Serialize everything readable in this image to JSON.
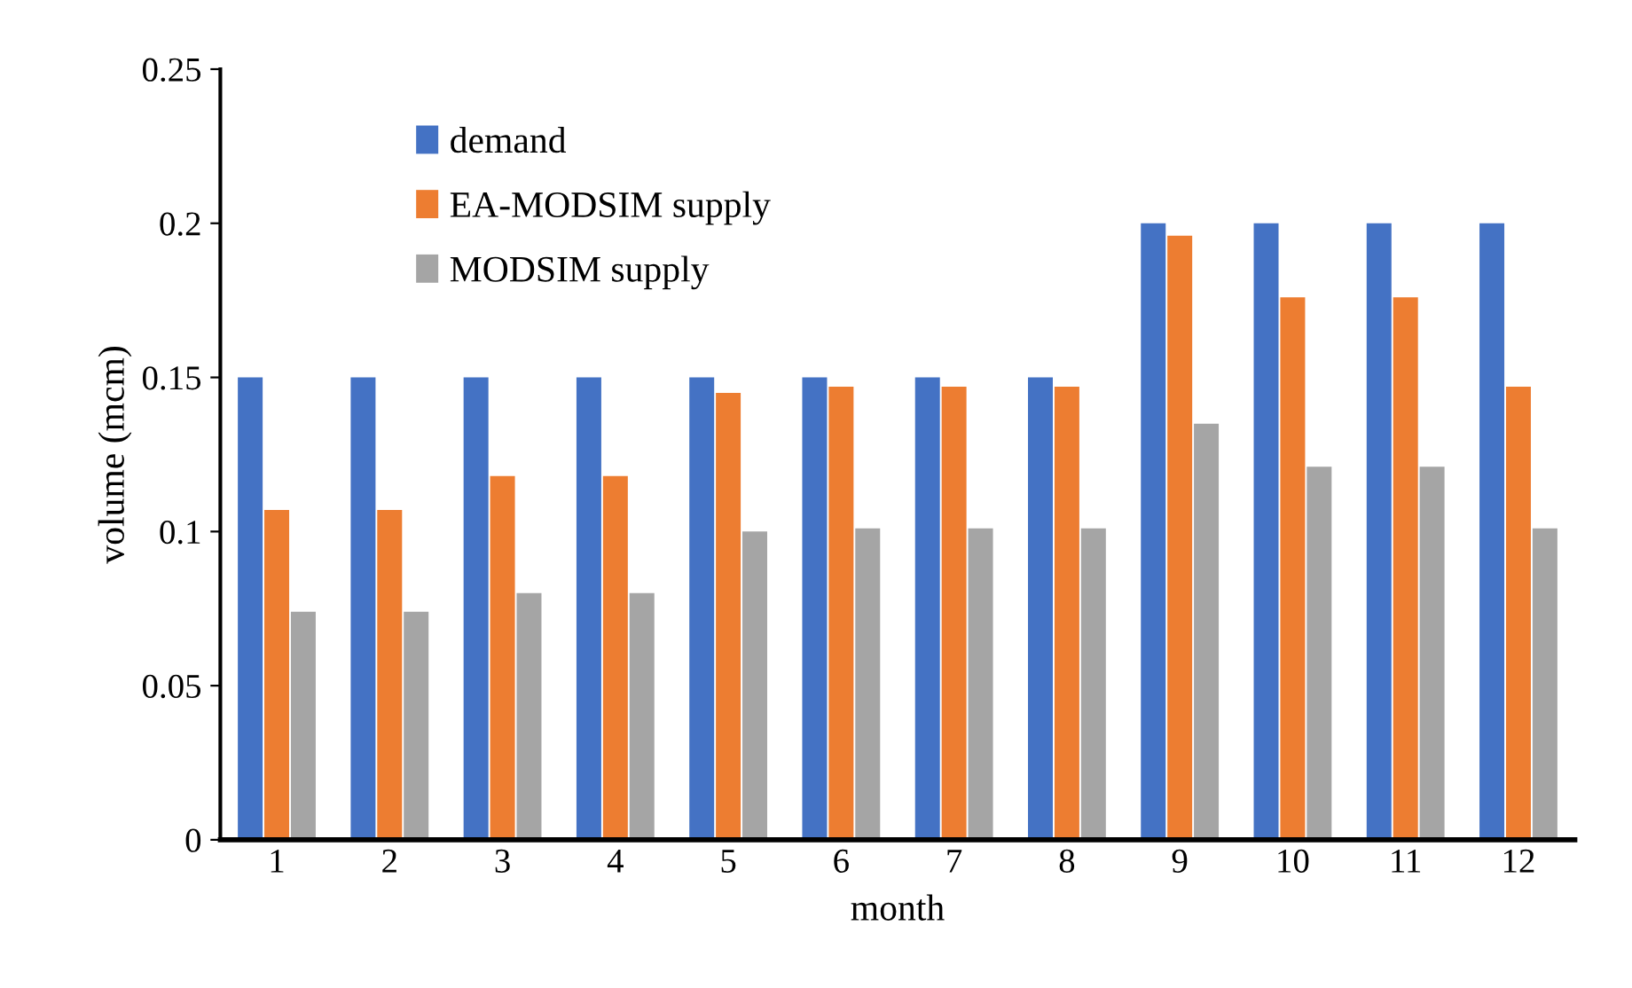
{
  "chart_data": {
    "type": "bar",
    "xlabel": "month",
    "ylabel": "volume (mcm)",
    "categories": [
      "1",
      "2",
      "3",
      "4",
      "5",
      "6",
      "7",
      "8",
      "9",
      "10",
      "11",
      "12"
    ],
    "series": [
      {
        "name": "demand",
        "color": "#4472c4",
        "values": [
          0.15,
          0.15,
          0.15,
          0.15,
          0.15,
          0.15,
          0.15,
          0.15,
          0.2,
          0.2,
          0.2,
          0.2
        ]
      },
      {
        "name": "EA-MODSIM supply",
        "color": "#ed7d31",
        "values": [
          0.107,
          0.107,
          0.118,
          0.118,
          0.145,
          0.147,
          0.147,
          0.147,
          0.196,
          0.176,
          0.176,
          0.147
        ]
      },
      {
        "name": "MODSIM supply",
        "color": "#a5a5a5",
        "values": [
          0.074,
          0.074,
          0.08,
          0.08,
          0.1,
          0.101,
          0.101,
          0.101,
          0.135,
          0.121,
          0.121,
          0.101
        ]
      }
    ],
    "ylim": [
      0,
      0.25
    ],
    "yticks": [
      {
        "value": 0,
        "label": "0"
      },
      0.05,
      0.1,
      0.15,
      0.2,
      0.25
    ],
    "grid": false,
    "legend": "top left"
  }
}
